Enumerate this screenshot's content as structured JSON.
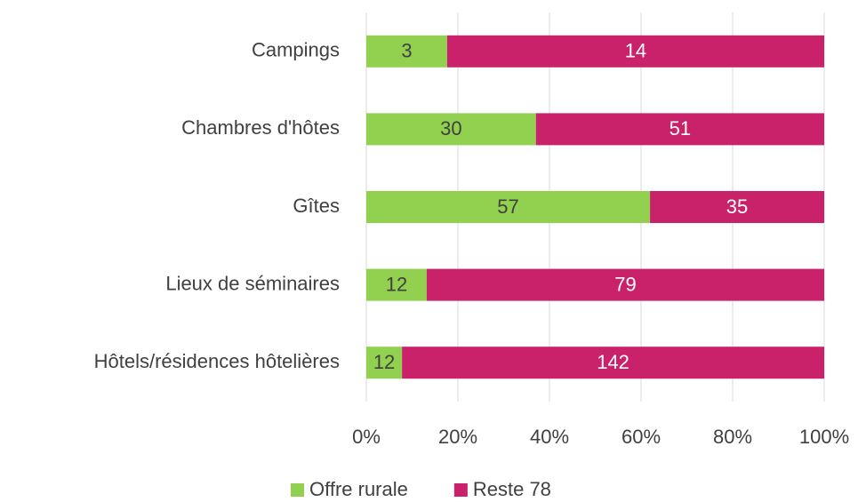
{
  "chart_data": {
    "type": "bar",
    "orientation": "horizontal",
    "stacking": "percent",
    "categories": [
      "Campings",
      "Chambres d'hôtes",
      "Gîtes",
      "Lieux de séminaires",
      "Hôtels/résidences hôtelières"
    ],
    "series": [
      {
        "name": "Offre rurale",
        "color": "#92d050",
        "values": [
          3,
          30,
          57,
          12,
          12
        ]
      },
      {
        "name": "Reste 78",
        "color": "#c9226b",
        "values": [
          14,
          51,
          35,
          79,
          142
        ]
      }
    ],
    "xlim": [
      0,
      100
    ],
    "xticks": [
      {
        "value": 0,
        "label": "0%"
      },
      {
        "value": 20,
        "label": "20%"
      },
      {
        "value": 40,
        "label": "40%"
      },
      {
        "value": 60,
        "label": "60%"
      },
      {
        "value": 80,
        "label": "80%"
      },
      {
        "value": 100,
        "label": "100%"
      }
    ],
    "grid": true,
    "legend": "bottom"
  }
}
